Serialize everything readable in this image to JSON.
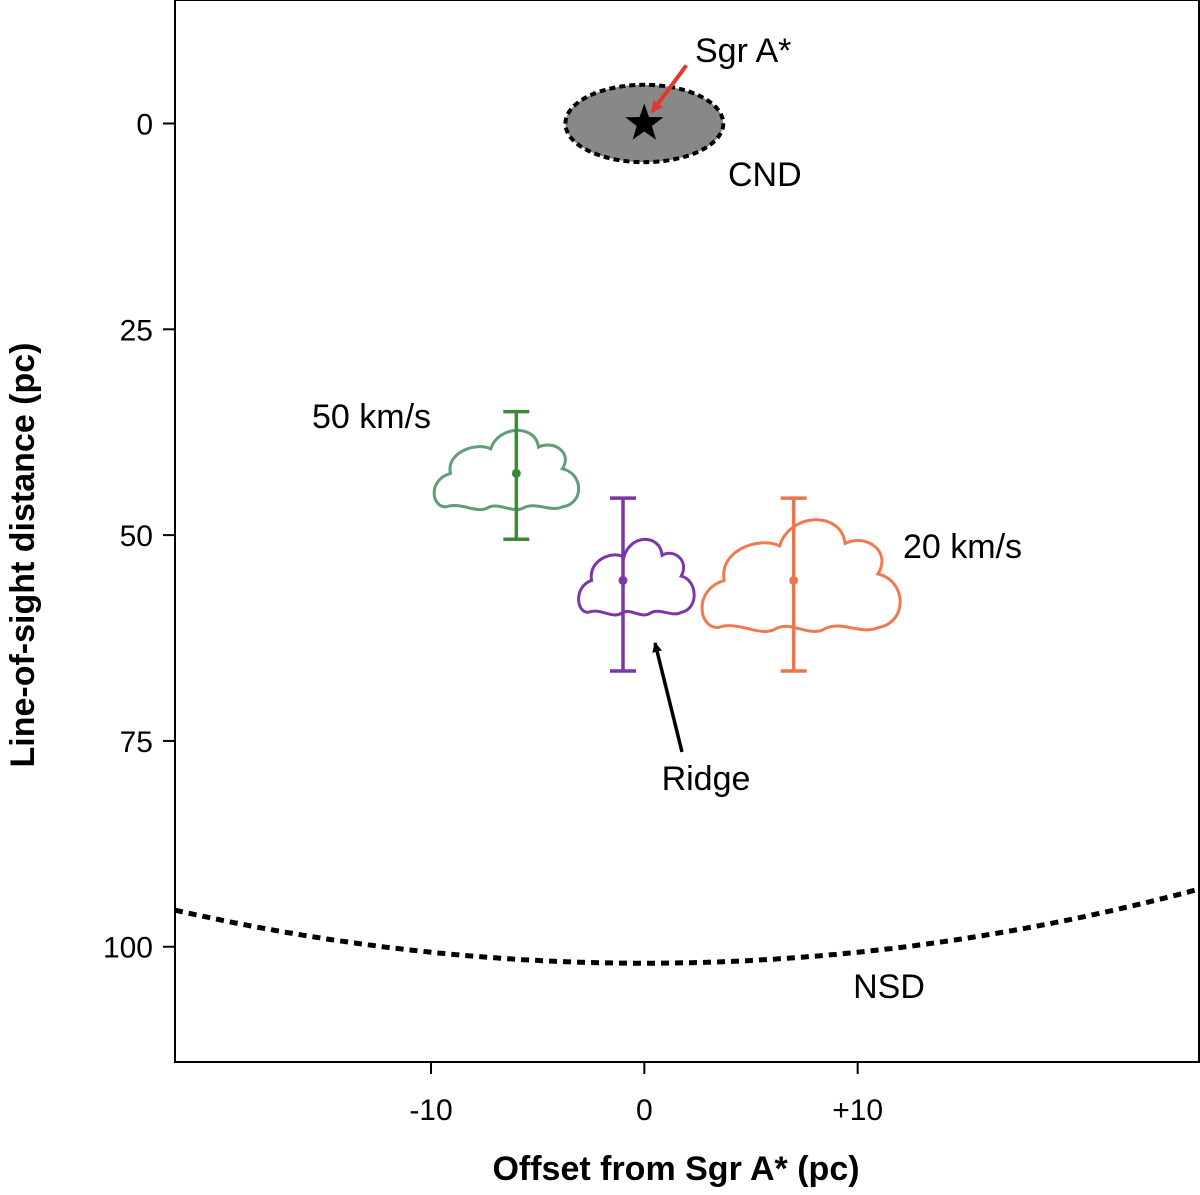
{
  "chart_data": {
    "type": "scatter",
    "xlabel": "Offset from Sgr A* (pc)",
    "ylabel": "Line-of-sight distance (pc)",
    "xlim": [
      -22,
      26
    ],
    "ylim": [
      -15,
      114
    ],
    "y_inverted": true,
    "x_ticks": [
      {
        "value": -10,
        "label": "-10"
      },
      {
        "value": 0,
        "label": "0"
      },
      {
        "value": 10,
        "label": "+10"
      }
    ],
    "y_ticks": [
      {
        "value": 0,
        "label": "0"
      },
      {
        "value": 25,
        "label": "25"
      },
      {
        "value": 50,
        "label": "50"
      },
      {
        "value": 75,
        "label": "75"
      },
      {
        "value": 100,
        "label": "100"
      }
    ],
    "grid": false,
    "series": [
      {
        "name": "50 km/s",
        "x": -6,
        "y": 42.5,
        "err_low": 35,
        "err_high": 50.5,
        "color": "#3a8a3a",
        "cloud_color": "#5f9e78"
      },
      {
        "name": "Ridge",
        "x": -1,
        "y": 55.5,
        "err_low": 45.5,
        "err_high": 66.5,
        "color": "#7b36a8",
        "cloud_color": "#7b36a8"
      },
      {
        "name": "20 km/s",
        "x": 7,
        "y": 55.5,
        "err_low": 45.5,
        "err_high": 66.5,
        "color": "#e8774e",
        "cloud_color": "#ef7a4f"
      }
    ],
    "annotations": {
      "sgr_a": {
        "label": "Sgr A*",
        "x": 0,
        "y": 0,
        "arrow_color": "#e03a2a"
      },
      "cnd": {
        "label": "CND",
        "center_x": 0,
        "center_y": 0,
        "half_width": 3.7,
        "half_height": 4.7,
        "fill": "#888888"
      },
      "nsd": {
        "label": "NSD",
        "center_y": 102,
        "rim_y_at_edge": 93
      },
      "ridge_label": "Ridge",
      "cloud_50_label": "50 km/s",
      "cloud_20_label": "20 km/s"
    }
  }
}
